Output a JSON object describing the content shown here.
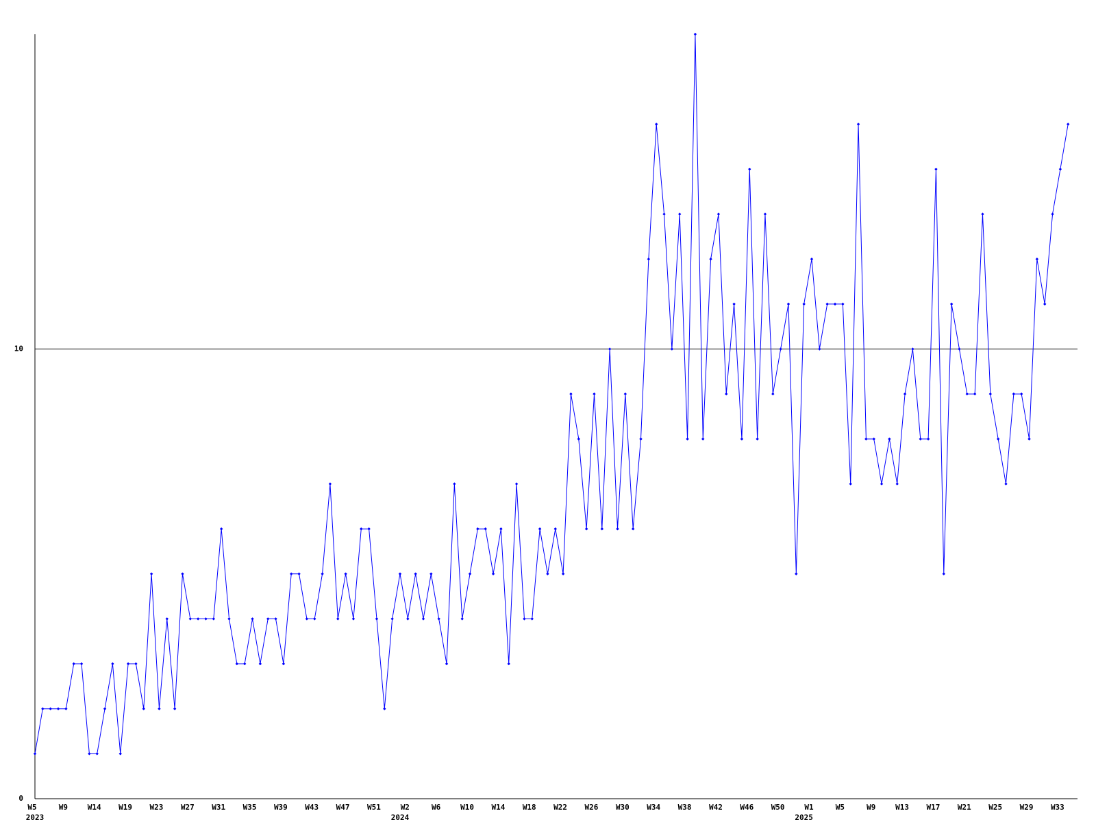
{
  "chart_data": {
    "type": "line",
    "categories": [
      "W5",
      null,
      null,
      null,
      "W9",
      null,
      null,
      null,
      "W14",
      null,
      null,
      null,
      "W19",
      null,
      null,
      null,
      "W23",
      null,
      null,
      null,
      "W27",
      null,
      null,
      null,
      "W31",
      null,
      null,
      null,
      "W35",
      null,
      null,
      null,
      "W39",
      null,
      null,
      null,
      "W43",
      null,
      null,
      null,
      "W47",
      null,
      null,
      null,
      "W51",
      null,
      null,
      null,
      "W2",
      null,
      null,
      null,
      "W6",
      null,
      null,
      null,
      "W10",
      null,
      null,
      null,
      "W14",
      null,
      null,
      null,
      "W18",
      null,
      null,
      null,
      "W22",
      null,
      null,
      null,
      "W26",
      null,
      null,
      null,
      "W30",
      null,
      null,
      null,
      "W34",
      null,
      null,
      null,
      "W38",
      null,
      null,
      null,
      "W42",
      null,
      null,
      null,
      "W46",
      null,
      null,
      null,
      "W50",
      null,
      null,
      null,
      "W1",
      null,
      null,
      null,
      "W5",
      null,
      null,
      null,
      "W9",
      null,
      null,
      null,
      "W13",
      null,
      null,
      null,
      "W17",
      null,
      null,
      null,
      "W21",
      null,
      null,
      null,
      "W25",
      null,
      null,
      null,
      "W29",
      null,
      null,
      null,
      "W33",
      null
    ],
    "year_labels": [
      "2023",
      null,
      null,
      null,
      null,
      null,
      null,
      null,
      null,
      null,
      null,
      null,
      null,
      null,
      null,
      null,
      null,
      null,
      null,
      null,
      null,
      null,
      null,
      null,
      null,
      null,
      null,
      null,
      null,
      null,
      null,
      null,
      null,
      null,
      null,
      null,
      null,
      null,
      null,
      null,
      null,
      null,
      null,
      null,
      null,
      null,
      null,
      "2024",
      null,
      null,
      null,
      null,
      null,
      null,
      null,
      null,
      null,
      null,
      null,
      null,
      null,
      null,
      null,
      null,
      null,
      null,
      null,
      null,
      null,
      null,
      null,
      null,
      null,
      null,
      null,
      null,
      null,
      null,
      null,
      null,
      null,
      null,
      null,
      null,
      null,
      null,
      null,
      null,
      null,
      null,
      null,
      null,
      null,
      null,
      null,
      null,
      null,
      null,
      null,
      "2025",
      null,
      null,
      null,
      null,
      null,
      null,
      null,
      null,
      null,
      null,
      null,
      null,
      null,
      null,
      null,
      null,
      null,
      null,
      null,
      null,
      null,
      null,
      null,
      null,
      null,
      null,
      null,
      null,
      null,
      null,
      null,
      null,
      null,
      null
    ],
    "series": [
      {
        "color": "#0000ff",
        "values": [
          1,
          2,
          2,
          2,
          2,
          3,
          3,
          1,
          1,
          2,
          3,
          1,
          3,
          3,
          2,
          5,
          2,
          4,
          2,
          5,
          4,
          4,
          4,
          4,
          6,
          4,
          3,
          3,
          4,
          3,
          4,
          4,
          3,
          5,
          5,
          4,
          4,
          5,
          7,
          4,
          5,
          4,
          6,
          6,
          4,
          2,
          4,
          5,
          4,
          5,
          4,
          5,
          4,
          3,
          7,
          4,
          5,
          6,
          6,
          5,
          6,
          3,
          7,
          4,
          4,
          6,
          5,
          6,
          5,
          9,
          8,
          6,
          9,
          6,
          10,
          6,
          9,
          6,
          8,
          12,
          15,
          13,
          10,
          13,
          8,
          17,
          8,
          12,
          13,
          9,
          11,
          8,
          14,
          8,
          13,
          9,
          10,
          11,
          5,
          11,
          12,
          10,
          11,
          11,
          11,
          7,
          15,
          8,
          8,
          7,
          8,
          7,
          9,
          10,
          8,
          8,
          14,
          5,
          11,
          10,
          9,
          9,
          13,
          9,
          8,
          7,
          9,
          9,
          8,
          12,
          11,
          13,
          14,
          15
        ]
      }
    ],
    "ylim": [
      0,
      17
    ],
    "yticks": [
      0,
      10
    ],
    "grid": true
  }
}
